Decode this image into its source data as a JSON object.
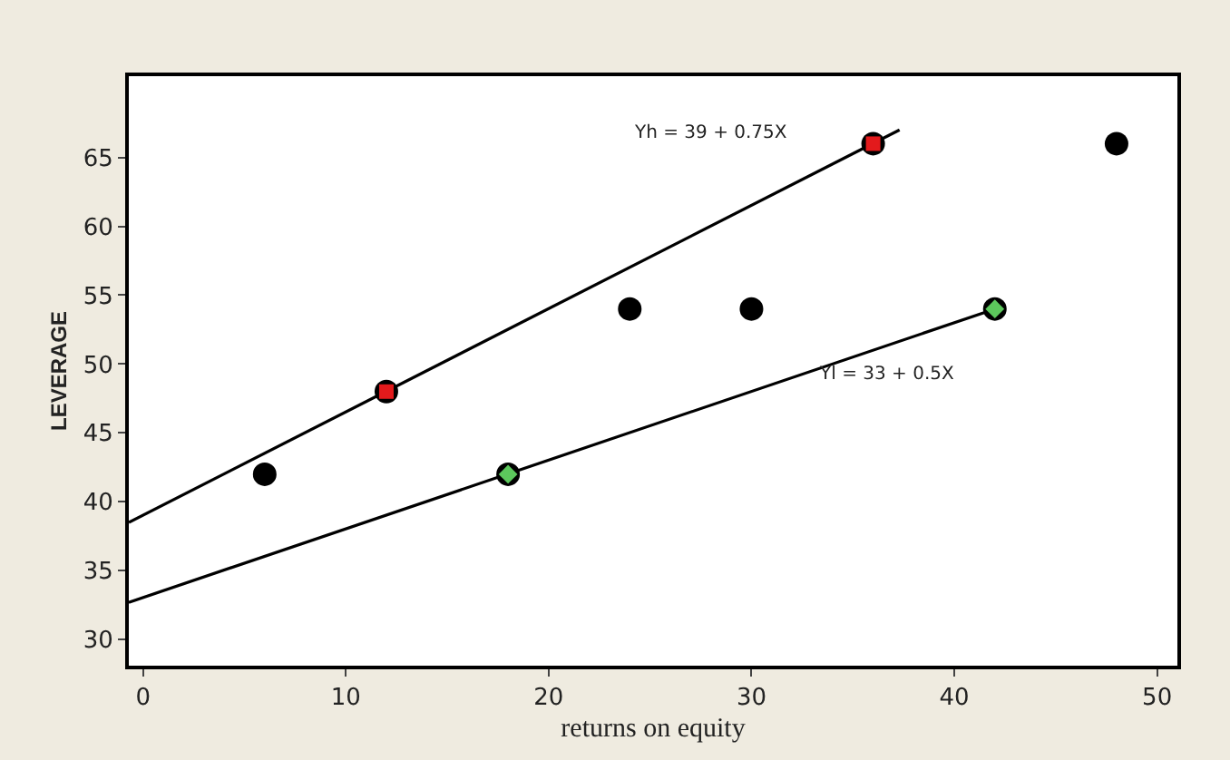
{
  "chart_data": {
    "type": "scatter",
    "xlabel": "returns on equity",
    "ylabel": "LEVERAGE",
    "xlim": [
      -0.7,
      51
    ],
    "ylim": [
      28.1,
      70.9
    ],
    "xticks": [
      0,
      10,
      20,
      30,
      40,
      50
    ],
    "yticks": [
      30,
      35,
      40,
      45,
      50,
      55,
      60,
      65
    ],
    "grid": false,
    "marker": "circle",
    "series": [
      {
        "type": "line",
        "color": "#000000",
        "x": [
          -0.7,
          37.3
        ],
        "values": [
          38.5,
          67
        ],
        "marker": "none",
        "line_style": "solid"
      },
      {
        "type": "line",
        "color": "#000000",
        "x": [
          -0.7,
          42
        ],
        "values": [
          32.7,
          54
        ],
        "marker": "none",
        "line_style": "solid"
      },
      {
        "color": "#000000",
        "x": [
          6,
          12,
          18,
          24,
          30,
          36,
          42,
          48
        ],
        "values": [
          42,
          48,
          42,
          54,
          54,
          66,
          54,
          66
        ]
      },
      {
        "color": "#e31a1c",
        "x": [
          12,
          36
        ],
        "values": [
          48,
          66
        ],
        "marker": "square"
      },
      {
        "color": "#5cc85c",
        "x": [
          18,
          42
        ],
        "values": [
          42,
          54
        ],
        "marker": "diamond"
      }
    ],
    "annotations": [
      "Yh = 39 + 0.75X",
      "Yl = 33 + 0.5X"
    ]
  }
}
